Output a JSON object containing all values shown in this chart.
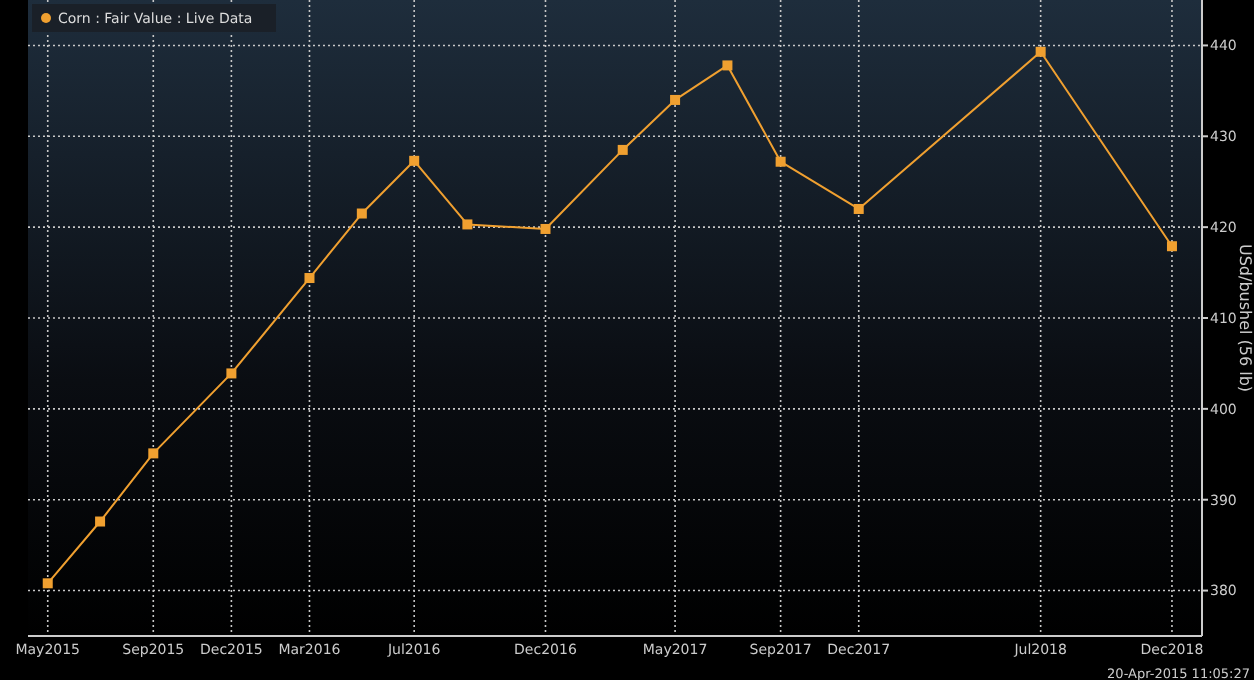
{
  "chart_data": {
    "type": "line",
    "ylabel": "USd/bushel (56 lb)",
    "x": [
      "2015-05",
      "2015-07",
      "2015-09",
      "2015-12",
      "2016-03",
      "2016-05",
      "2016-07",
      "2016-09",
      "2016-12",
      "2017-03",
      "2017-05",
      "2017-07",
      "2017-09",
      "2017-12",
      "2018-07",
      "2018-12"
    ],
    "series": [
      {
        "name": "Corn : Fair Value : Live Data",
        "color": "#f0a030",
        "values": [
          380.8,
          387.6,
          395.1,
          403.9,
          414.4,
          421.5,
          427.3,
          420.3,
          419.8,
          428.5,
          434.0,
          437.8,
          427.2,
          422.0,
          439.3,
          417.9
        ]
      }
    ],
    "xlim": [
      "2015-04-08",
      "2019-01-05"
    ],
    "xticks": [
      {
        "value": "2015-05",
        "label": "May2015"
      },
      {
        "value": "2015-09",
        "label": "Sep2015"
      },
      {
        "value": "2015-12",
        "label": "Dec2015"
      },
      {
        "value": "2016-03",
        "label": "Mar2016"
      },
      {
        "value": "2016-07",
        "label": "Jul2016"
      },
      {
        "value": "2016-12",
        "label": "Dec2016"
      },
      {
        "value": "2017-05",
        "label": "May2017"
      },
      {
        "value": "2017-09",
        "label": "Sep2017"
      },
      {
        "value": "2017-12",
        "label": "Dec2017"
      },
      {
        "value": "2018-07",
        "label": "Jul2018"
      },
      {
        "value": "2018-12",
        "label": "Dec2018"
      }
    ],
    "ylim": [
      375,
      445
    ],
    "yticks": [
      380,
      390,
      400,
      410,
      420,
      430,
      440
    ],
    "grid": true,
    "legend": "top left",
    "marker": "square",
    "line_style": "solid",
    "annotations": [
      "20-Apr-2015 11:05:27"
    ]
  }
}
